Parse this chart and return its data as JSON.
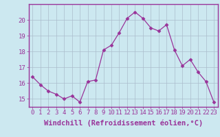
{
  "x": [
    0,
    1,
    2,
    3,
    4,
    5,
    6,
    7,
    8,
    9,
    10,
    11,
    12,
    13,
    14,
    15,
    16,
    17,
    18,
    19,
    20,
    21,
    22,
    23
  ],
  "y": [
    16.4,
    15.9,
    15.5,
    15.3,
    15.0,
    15.2,
    14.8,
    16.1,
    16.2,
    18.1,
    18.4,
    19.2,
    20.1,
    20.5,
    20.1,
    19.5,
    19.3,
    19.7,
    18.1,
    17.1,
    17.5,
    16.7,
    16.1,
    14.8
  ],
  "line_color": "#993399",
  "marker": "D",
  "marker_size": 2.5,
  "background_color": "#cce8f0",
  "grid_color": "#aabccc",
  "xlabel": "Windchill (Refroidissement éolien,°C)",
  "xlabel_color": "#993399",
  "tick_color": "#993399",
  "ylim": [
    14.5,
    21.0
  ],
  "xlim": [
    -0.5,
    23.5
  ],
  "yticks": [
    15,
    16,
    17,
    18,
    19,
    20
  ],
  "xticks": [
    0,
    1,
    2,
    3,
    4,
    5,
    6,
    7,
    8,
    9,
    10,
    11,
    12,
    13,
    14,
    15,
    16,
    17,
    18,
    19,
    20,
    21,
    22,
    23
  ],
  "xtick_labels": [
    "0",
    "1",
    "2",
    "3",
    "4",
    "5",
    "6",
    "7",
    "8",
    "9",
    "10",
    "11",
    "12",
    "13",
    "14",
    "15",
    "16",
    "17",
    "18",
    "19",
    "20",
    "21",
    "22",
    "23"
  ],
  "font_size": 6.5,
  "xlabel_font_size": 7.5
}
